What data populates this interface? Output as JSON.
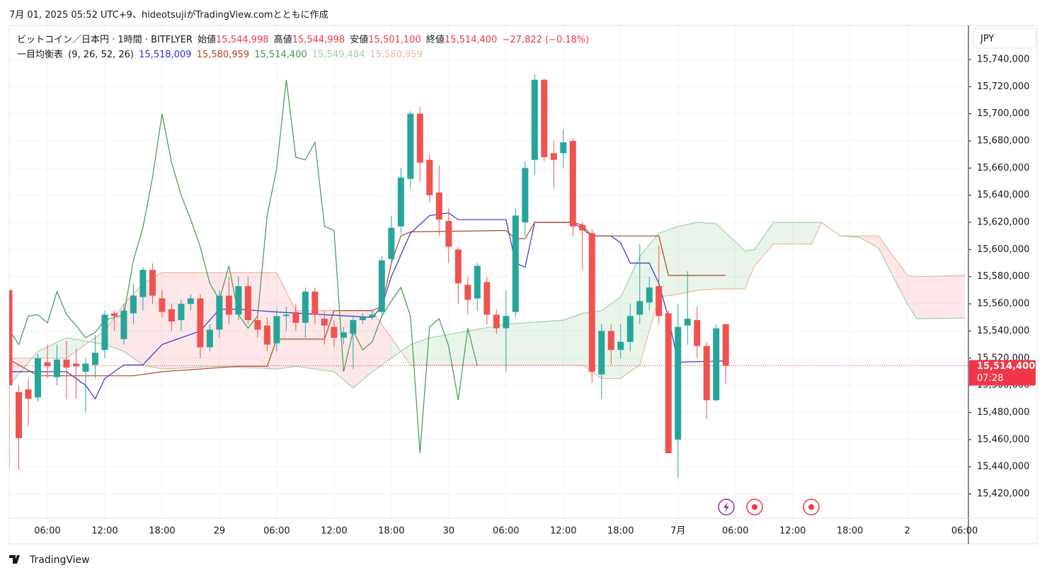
{
  "header": {
    "watermark": "7月 01, 2025 05:52 UTC+9、hideotsujiがTradingView.comとともに作成",
    "footer": "TradingView"
  },
  "legend": {
    "symbol": "ビットコイン／日本円 · 1時間 · BITFLYER",
    "open_label": "始値",
    "open": "15,544,998",
    "high_label": "高値",
    "high": "15,544,998",
    "low_label": "安値",
    "low": "15,501,100",
    "close_label": "終値",
    "close": "15,514,400",
    "change": "−27,822 (−0.18%)",
    "indicator": "一目均衡表",
    "params": "(9, 26, 52, 26)",
    "values": [
      "15,518,009",
      "15,580,959",
      "15,514,400",
      "15,549,484",
      "15,580,959"
    ]
  },
  "chart_data": {
    "type": "candlestick",
    "currency": "JPY",
    "up_color": "#26a69a",
    "down_color": "#ef5350",
    "grid": true,
    "x": [
      2,
      3,
      4,
      5,
      6,
      7,
      8,
      9,
      10,
      11,
      12,
      13,
      14,
      15,
      16,
      17,
      18,
      19,
      20,
      21,
      22,
      23,
      24,
      25,
      26,
      27,
      28,
      29,
      30,
      31,
      32,
      33,
      34,
      35,
      36,
      37,
      38,
      39,
      40,
      41,
      42,
      43,
      44,
      45,
      46,
      47,
      48,
      49,
      50,
      51,
      52,
      53,
      54,
      55,
      56,
      57,
      58,
      59,
      60,
      61,
      62,
      63,
      64,
      65,
      66,
      67,
      68,
      69,
      70,
      71,
      72,
      73,
      74,
      75,
      76,
      77
    ],
    "open": [
      15570000,
      15495000,
      15497000,
      15491000,
      15517000,
      15506000,
      15519000,
      15516000,
      15510000,
      15515000,
      15526000,
      15553000,
      15534000,
      15553000,
      15565000,
      15585000,
      15564000,
      15556000,
      15548000,
      15560000,
      15564000,
      15528000,
      15541000,
      15566000,
      15552000,
      15573000,
      15548000,
      15544000,
      15531000,
      15551000,
      15554000,
      15546000,
      15569000,
      15549000,
      15543000,
      15535000,
      15538000,
      15548000,
      15550000,
      15554000,
      15593000,
      15617000,
      15652000,
      15700000,
      15666000,
      15642000,
      15621000,
      15600000,
      15574000,
      15564000,
      15576000,
      15552000,
      15542000,
      15554000,
      15620000,
      15666000,
      15725000,
      15671000,
      15671000,
      15680000,
      15618000,
      15612000,
      15508000,
      15540000,
      15526000,
      15532000,
      15552000,
      15561000,
      15573000,
      15553000,
      15460000,
      15544000,
      15548000,
      15529000,
      15489000,
      15544998
    ],
    "high": [
      15570000,
      15500000,
      15505000,
      15523000,
      15530000,
      15530000,
      15533000,
      15527000,
      15520000,
      15537000,
      15555000,
      15555000,
      15560000,
      15575000,
      15587000,
      15590000,
      15570000,
      15560000,
      15563000,
      15567000,
      15567000,
      15545000,
      15570000,
      15580000,
      15580000,
      15580000,
      15555000,
      15550000,
      15556000,
      15558000,
      15560000,
      15572000,
      15572000,
      15555000,
      15548000,
      15543000,
      15552000,
      15553000,
      15555000,
      15595000,
      15625000,
      15660000,
      15702000,
      15705000,
      15670000,
      15662000,
      15630000,
      15602000,
      15580000,
      15590000,
      15580000,
      15556000,
      15570000,
      15630000,
      15665000,
      15729000,
      15726000,
      15680000,
      15688000,
      15682000,
      15620000,
      15615000,
      15545000,
      15545000,
      15545000,
      15560000,
      15604000,
      15580000,
      15603000,
      15555000,
      15560000,
      15584000,
      15558000,
      15532000,
      15545000,
      15544998
    ],
    "low": [
      15440000,
      15438000,
      15470000,
      15488000,
      15505000,
      15500000,
      15490000,
      15490000,
      15480000,
      15505000,
      15520000,
      15540000,
      15530000,
      15545000,
      15555000,
      15560000,
      15550000,
      15540000,
      15540000,
      15555000,
      15520000,
      15525000,
      15535000,
      15545000,
      15548000,
      15545000,
      15535000,
      15525000,
      15525000,
      15540000,
      15540000,
      15535000,
      15545000,
      15530000,
      15528000,
      15530000,
      15512000,
      15545000,
      15548000,
      15550000,
      15590000,
      15612000,
      15645000,
      15650000,
      15635000,
      15610000,
      15590000,
      15560000,
      15552000,
      15555000,
      15545000,
      15538000,
      15510000,
      15550000,
      15610000,
      15655000,
      15665000,
      15645000,
      15660000,
      15610000,
      15585000,
      15502000,
      15490000,
      15515000,
      15520000,
      15525000,
      15545000,
      15555000,
      15545000,
      15450000,
      15432000,
      15530000,
      15520000,
      15475000,
      15488000,
      15501100
    ],
    "close": [
      15500000,
      15461000,
      15490000,
      15520000,
      15514000,
      15519000,
      15513000,
      15514000,
      15516000,
      15524000,
      15552000,
      15551000,
      15555000,
      15566000,
      15585000,
      15566000,
      15554000,
      15547000,
      15560000,
      15564000,
      15528000,
      15541000,
      15566000,
      15552000,
      15573000,
      15548000,
      15541000,
      15530000,
      15551000,
      15552000,
      15546000,
      15569000,
      15552000,
      15544000,
      15535000,
      15539000,
      15548000,
      15550000,
      15552000,
      15592000,
      15616000,
      15653000,
      15700000,
      15664000,
      15640000,
      15622000,
      15602000,
      15575000,
      15563000,
      15588000,
      15552000,
      15542000,
      15551000,
      15625000,
      15660000,
      15725000,
      15668000,
      15666000,
      15679000,
      15617000,
      15614000,
      15510000,
      15540000,
      15526000,
      15532000,
      15551000,
      15562000,
      15572000,
      15551000,
      15450000,
      15543000,
      15549000,
      15529000,
      15489000,
      15542000,
      15514400
    ],
    "series": [
      {
        "color": "#2f33d8",
        "x": [
          2,
          8,
          10,
          11,
          12,
          14,
          16,
          18,
          22,
          24,
          26,
          30,
          40,
          41,
          42,
          44,
          46,
          48,
          49,
          54,
          55,
          56,
          57,
          61,
          63,
          65,
          66,
          67,
          69,
          70,
          71,
          72,
          77
        ],
        "values": [
          15510000,
          15510000,
          15500000,
          15490000,
          15505000,
          15515000,
          15515000,
          15530000,
          15540000,
          15556000,
          15556000,
          15554000,
          15550000,
          15558000,
          15580000,
          15612000,
          15625000,
          15627000,
          15622000,
          15622000,
          15590000,
          15587000,
          15620000,
          15620000,
          15610000,
          15610000,
          15605000,
          15590000,
          15590000,
          15575000,
          15550000,
          15517000,
          15518009
        ]
      },
      {
        "color": "#b5441c",
        "x": [
          2,
          5,
          15,
          18,
          26,
          29,
          30,
          35,
          36,
          40,
          41,
          42,
          43,
          44,
          54,
          55,
          56,
          57,
          61,
          62,
          63,
          70,
          71,
          77
        ],
        "values": [
          15519000,
          15507000,
          15507000,
          15510000,
          15514000,
          15514000,
          15534000,
          15534000,
          15555000,
          15555000,
          15558000,
          15590000,
          15610000,
          15613000,
          15614000,
          15608000,
          15608000,
          15620000,
          15620000,
          15618000,
          15610000,
          15610000,
          15580959,
          15580959
        ]
      },
      {
        "color": "#3d9a50",
        "x": [
          2,
          3,
          4,
          5,
          6,
          7,
          8,
          9,
          10,
          11,
          12,
          13,
          14,
          15,
          16,
          17,
          18,
          19,
          20,
          21,
          22,
          23,
          24,
          25,
          26,
          27,
          28,
          29,
          30,
          31,
          32,
          33,
          34,
          35,
          36,
          37,
          38,
          39,
          40,
          41,
          42,
          43,
          44,
          45,
          46,
          47,
          48,
          49,
          50,
          51
        ],
        "values": [
          15541000,
          15530000,
          15551000,
          15552000,
          15546000,
          15569000,
          15552000,
          15544000,
          15535000,
          15539000,
          15548000,
          15550000,
          15552000,
          15592000,
          15616000,
          15653000,
          15700000,
          15664000,
          15640000,
          15622000,
          15602000,
          15575000,
          15563000,
          15588000,
          15552000,
          15542000,
          15551000,
          15625000,
          15660000,
          15725000,
          15668000,
          15666000,
          15679000,
          15617000,
          15614000,
          15510000,
          15540000,
          15526000,
          15532000,
          15551000,
          15562000,
          15572000,
          15551000,
          15450000,
          15543000,
          15549000,
          15529000,
          15489000,
          15542000,
          15514400
        ]
      }
    ],
    "cloud": {
      "x": [
        2,
        5,
        8,
        12,
        14,
        16,
        18,
        24,
        30,
        32,
        36,
        38,
        40,
        42,
        44,
        46,
        54,
        60,
        62,
        64,
        66,
        68,
        70,
        72,
        74,
        76,
        79,
        80,
        82,
        86,
        87,
        89,
        91,
        93,
        96,
        97,
        102
      ],
      "a": {
        "color": "#9fd3a4",
        "values": [
          15500000,
          15525000,
          15535000,
          15530000,
          15525000,
          15515000,
          15512000,
          15514000,
          15512000,
          15514000,
          15510000,
          15498000,
          15510000,
          15520000,
          15530000,
          15535000,
          15545000,
          15548000,
          15553000,
          15555000,
          15565000,
          15595000,
          15612000,
          15617000,
          15620000,
          15619000,
          15599000,
          15600000,
          15620000,
          15620000,
          15620000,
          15610000,
          15609000,
          15601000,
          15560000,
          15549000,
          15549484
        ]
      },
      "b": {
        "color": "#f2b59c",
        "values": [
          15520000,
          15520000,
          15520000,
          15540000,
          15560000,
          15575000,
          15583000,
          15583000,
          15583000,
          15555000,
          15555000,
          15555000,
          15555000,
          15535000,
          15515000,
          15515000,
          15515000,
          15515000,
          15515000,
          15505000,
          15505000,
          15515000,
          15565000,
          15567000,
          15570000,
          15571000,
          15571000,
          15588000,
          15604000,
          15604000,
          15620000,
          15610000,
          15610000,
          15610000,
          15581000,
          15580000,
          15580959
        ]
      },
      "up_fill": "rgba(76,175,80,0.12)",
      "down_fill": "rgba(242,54,69,0.12)"
    },
    "last_price": {
      "value": 15514400,
      "label": "15,514,400",
      "countdown": "07:28",
      "color": "#f23645"
    },
    "xlim": [
      2,
      102.4
    ],
    "xticks": [
      {
        "value": 6,
        "label": "06:00"
      },
      {
        "value": 12,
        "label": "12:00"
      },
      {
        "value": 18,
        "label": "18:00"
      },
      {
        "value": 24,
        "label": "29"
      },
      {
        "value": 30,
        "label": "06:00"
      },
      {
        "value": 36,
        "label": "12:00"
      },
      {
        "value": 42,
        "label": "18:00"
      },
      {
        "value": 48,
        "label": "30"
      },
      {
        "value": 54,
        "label": "06:00"
      },
      {
        "value": 60,
        "label": "12:00"
      },
      {
        "value": 66,
        "label": "18:00"
      },
      {
        "value": 72,
        "label": "7月"
      },
      {
        "value": 78,
        "label": "06:00"
      },
      {
        "value": 84,
        "label": "12:00"
      },
      {
        "value": 90,
        "label": "18:00"
      },
      {
        "value": 96,
        "label": "2"
      },
      {
        "value": 102,
        "label": "06:00"
      }
    ],
    "ylim": [
      15402000,
      15765000
    ],
    "yticks": [
      {
        "value": 15420000,
        "label": "15,420,000"
      },
      {
        "value": 15440000,
        "label": "15,440,000"
      },
      {
        "value": 15460000,
        "label": "15,460,000"
      },
      {
        "value": 15480000,
        "label": "15,480,000"
      },
      {
        "value": 15500000,
        "label": "15,500,000"
      },
      {
        "value": 15520000,
        "label": "15,520,000"
      },
      {
        "value": 15540000,
        "label": "15,540,000"
      },
      {
        "value": 15560000,
        "label": "15,560,000"
      },
      {
        "value": 15580000,
        "label": "15,580,000"
      },
      {
        "value": 15600000,
        "label": "15,600,000"
      },
      {
        "value": 15620000,
        "label": "15,620,000"
      },
      {
        "value": 15640000,
        "label": "15,640,000"
      },
      {
        "value": 15660000,
        "label": "15,660,000"
      },
      {
        "value": 15680000,
        "label": "15,680,000"
      },
      {
        "value": 15700000,
        "label": "15,700,000"
      },
      {
        "value": 15720000,
        "label": "15,720,000"
      },
      {
        "value": 15740000,
        "label": "15,740,000"
      }
    ]
  }
}
